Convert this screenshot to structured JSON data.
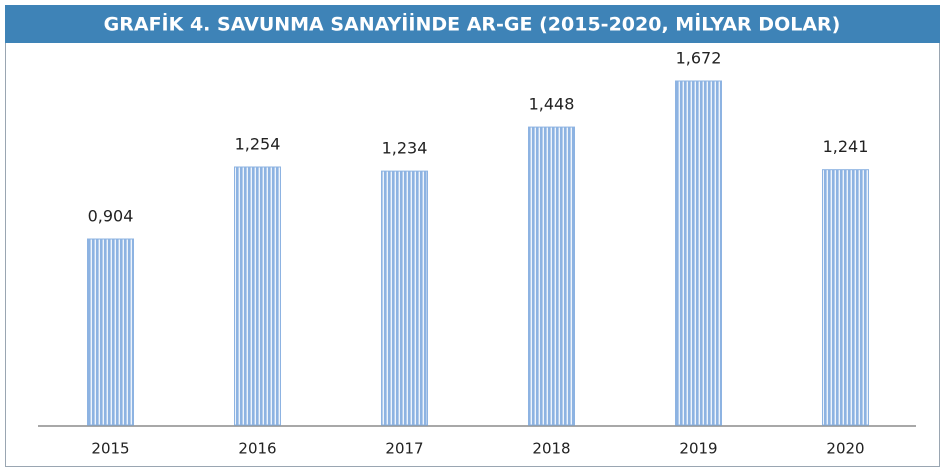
{
  "chart_data": {
    "type": "bar",
    "title": "GRAFİK 4. SAVUNMA SANAYİİNDE AR-GE (2015-2020, MİLYAR DOLAR)",
    "categories": [
      "2015",
      "2016",
      "2017",
      "2018",
      "2019",
      "2020"
    ],
    "values": [
      0.904,
      1.254,
      1.234,
      1.448,
      1.672,
      1.241
    ],
    "value_labels": [
      "0,904",
      "1,254",
      "1,234",
      "1,448",
      "1,672",
      "1,241"
    ],
    "color": "#8db3e2"
  }
}
